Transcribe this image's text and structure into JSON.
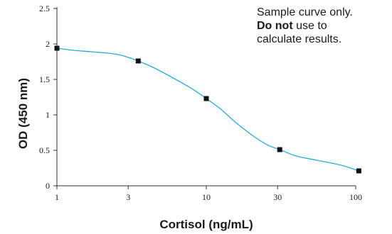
{
  "chart_data": {
    "type": "line",
    "xlabel": "Cortisol (ng/mL)",
    "ylabel": "OD (450 nm)",
    "x_scale": "log",
    "xlim": [
      1,
      100
    ],
    "ylim": [
      0,
      2.5
    ],
    "x_ticks": [
      1,
      3,
      10,
      30,
      100
    ],
    "x_tick_labels": [
      "1",
      "3",
      "10",
      "30",
      "100"
    ],
    "y_ticks": [
      0,
      0.5,
      1,
      1.5,
      2,
      2.5
    ],
    "y_tick_labels": [
      "0",
      "0.5",
      "1",
      "1.5",
      "2",
      "2.5"
    ],
    "series": [
      {
        "points": [
          {
            "x": 1,
            "y": 1.94
          },
          {
            "x": 3.5,
            "y": 1.76
          },
          {
            "x": 10,
            "y": 1.23
          },
          {
            "x": 31,
            "y": 0.51
          },
          {
            "x": 105,
            "y": 0.21
          }
        ],
        "curve": [
          {
            "x": 1,
            "y": 1.94
          },
          {
            "x": 1.3,
            "y": 1.91
          },
          {
            "x": 1.7,
            "y": 1.89
          },
          {
            "x": 2.2,
            "y": 1.87
          },
          {
            "x": 2.7,
            "y": 1.84
          },
          {
            "x": 3.5,
            "y": 1.76
          },
          {
            "x": 4.5,
            "y": 1.66
          },
          {
            "x": 6,
            "y": 1.52
          },
          {
            "x": 8,
            "y": 1.37
          },
          {
            "x": 10,
            "y": 1.23
          },
          {
            "x": 12.5,
            "y": 1.08
          },
          {
            "x": 16,
            "y": 0.88
          },
          {
            "x": 21,
            "y": 0.69
          },
          {
            "x": 26,
            "y": 0.57
          },
          {
            "x": 31,
            "y": 0.51
          },
          {
            "x": 40,
            "y": 0.42
          },
          {
            "x": 55,
            "y": 0.36
          },
          {
            "x": 80,
            "y": 0.29
          },
          {
            "x": 105,
            "y": 0.21
          }
        ],
        "line_color": "#29a9d9",
        "marker_color": "#111111"
      }
    ]
  },
  "note": {
    "line1": "Sample curve only.",
    "line2_bold": "Do not",
    "line2_rest": " use to",
    "line3": "calculate results."
  }
}
